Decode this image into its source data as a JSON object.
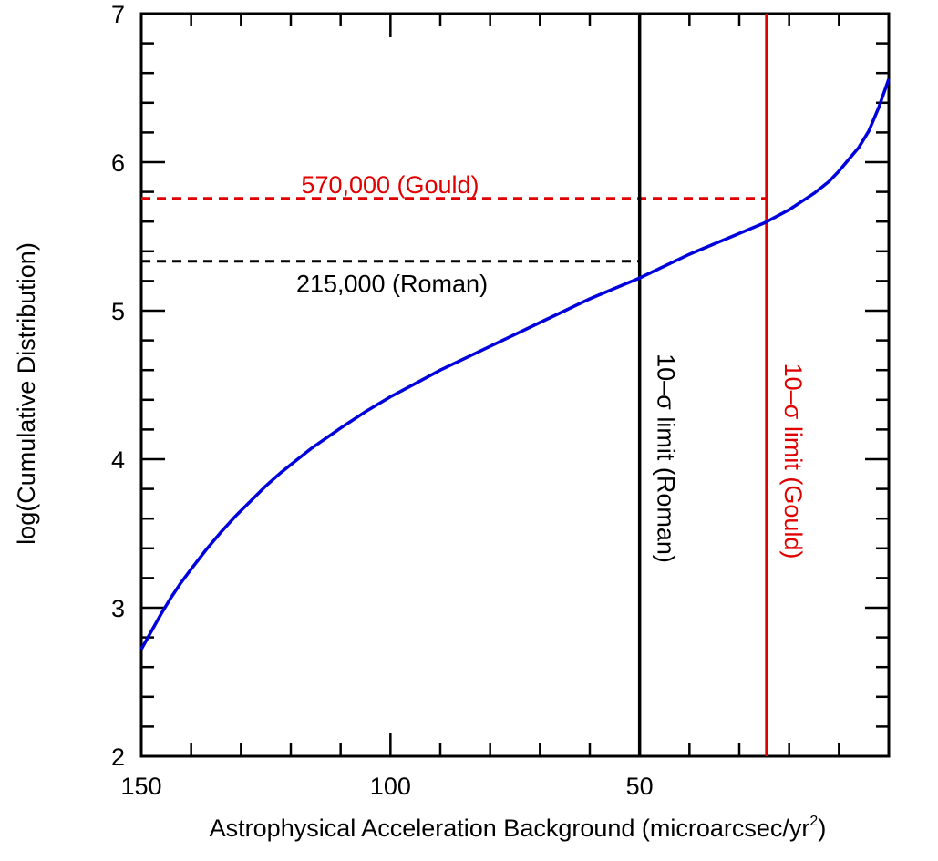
{
  "chart_data": {
    "type": "line",
    "title": "",
    "xlabel": "Astrophysical Acceleration Background (microarcsec/yr",
    "xlabel_sup": "2",
    "xlabel_end": ")",
    "ylabel": "log(Cumulative Distribution)",
    "x_reversed": true,
    "xlim": [
      150,
      0
    ],
    "ylim": [
      2,
      7
    ],
    "x_ticks": [
      150,
      100,
      50
    ],
    "x_tick_labels": [
      "150",
      "100",
      "50"
    ],
    "y_ticks": [
      2,
      3,
      4,
      5,
      6,
      7
    ],
    "y_tick_labels": [
      "2",
      "3",
      "4",
      "5",
      "6",
      "7"
    ],
    "grid": false,
    "colors": {
      "curve": "#0000dd",
      "roman": "#000000",
      "gould": "#e00000",
      "axes": "#000000"
    },
    "series": [
      {
        "x": [
          150,
          148,
          146,
          144,
          142,
          140,
          137,
          134,
          131,
          128,
          125,
          122,
          119,
          116,
          113,
          110,
          105,
          100,
          95,
          90,
          85,
          80,
          75,
          70,
          65,
          60,
          55,
          50,
          45,
          40,
          35,
          30,
          25,
          20,
          15,
          12,
          10,
          8,
          6,
          4,
          2,
          0
        ],
        "y": [
          2.72,
          2.84,
          2.96,
          3.07,
          3.17,
          3.26,
          3.39,
          3.51,
          3.62,
          3.72,
          3.82,
          3.91,
          3.99,
          4.07,
          4.14,
          4.21,
          4.32,
          4.42,
          4.51,
          4.6,
          4.68,
          4.76,
          4.84,
          4.92,
          5.0,
          5.08,
          5.15,
          5.22,
          5.3,
          5.38,
          5.45,
          5.52,
          5.59,
          5.68,
          5.79,
          5.87,
          5.94,
          6.02,
          6.1,
          6.21,
          6.37,
          6.56
        ]
      }
    ],
    "vertical_lines": [
      {
        "x": 50,
        "label": "10–σ limit (Roman)",
        "color": "#000000"
      },
      {
        "x": 24.5,
        "label": "10–σ limit (Gould)",
        "color": "#e00000"
      }
    ],
    "horizontal_lines": [
      {
        "y": 5.333,
        "x_end": 50,
        "label": "215,000 (Roman)",
        "color": "#000000",
        "dashed": true
      },
      {
        "y": 5.756,
        "x_end": 24.5,
        "label": "570,000 (Gould)",
        "color": "#e00000",
        "dashed": true
      }
    ]
  }
}
